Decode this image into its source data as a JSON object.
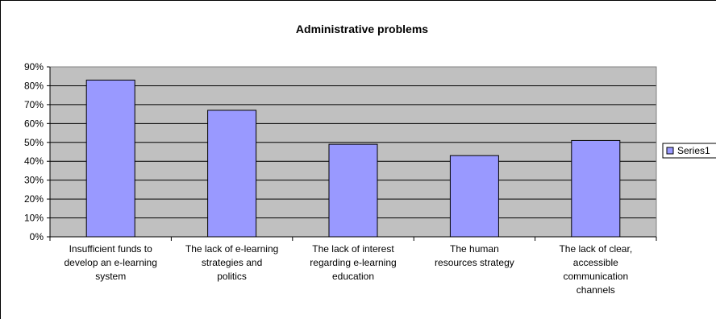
{
  "chart_data": {
    "type": "bar",
    "title": "Administrative problems",
    "categories": [
      [
        "Insufficient funds to",
        "develop an e-learning",
        "system"
      ],
      [
        "The lack of e-learning",
        "strategies and",
        "politics"
      ],
      [
        "The lack of interest",
        "regarding e-learning",
        "education"
      ],
      [
        "The human",
        "resources strategy"
      ],
      [
        "The lack of clear,",
        "accessible",
        "communication",
        "channels"
      ]
    ],
    "series": [
      {
        "name": "Series1",
        "values": [
          83,
          67,
          49,
          43,
          51
        ]
      }
    ],
    "y_ticks": [
      "0%",
      "10%",
      "20%",
      "30%",
      "40%",
      "50%",
      "60%",
      "70%",
      "80%",
      "90%"
    ],
    "ylim": [
      0,
      90
    ],
    "grid": true,
    "legend": "right",
    "colors": {
      "bar_fill": "#9999FF",
      "bar_stroke": "#000000",
      "plot_background": "#C0C0C0",
      "gridline": "#000000",
      "frame": "#000000"
    }
  }
}
